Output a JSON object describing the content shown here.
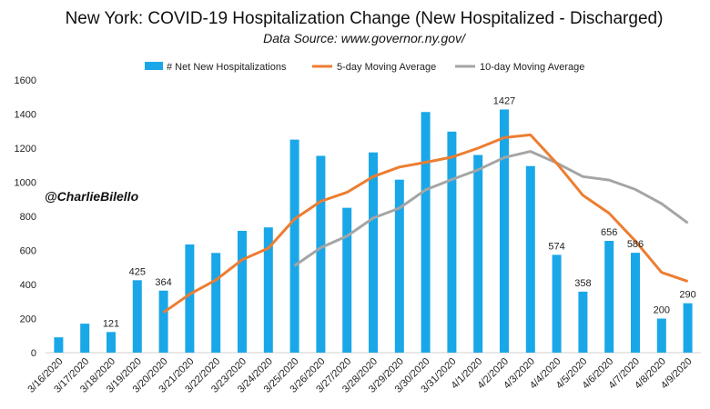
{
  "chart_data": {
    "type": "bar",
    "title": "New York: COVID-19 Hospitalization Change (New Hospitalized - Discharged)",
    "subtitle": "Data Source: www.governor.ny.gov/",
    "annotation": "@CharlieBilello",
    "ylim": [
      0,
      1600
    ],
    "yticks": [
      0,
      200,
      400,
      600,
      800,
      1000,
      1200,
      1400,
      1600
    ],
    "grid": false,
    "legend_position": "top",
    "categories": [
      "3/16/2020",
      "3/17/2020",
      "3/18/2020",
      "3/19/2020",
      "3/20/2020",
      "3/21/2020",
      "3/22/2020",
      "3/23/2020",
      "3/24/2020",
      "3/25/2020",
      "3/26/2020",
      "3/27/2020",
      "3/28/2020",
      "3/29/2020",
      "3/30/2020",
      "3/31/2020",
      "4/1/2020",
      "4/2/2020",
      "4/3/2020",
      "4/4/2020",
      "4/5/2020",
      "4/6/2020",
      "4/7/2020",
      "4/8/2020",
      "4/9/2020"
    ],
    "series": [
      {
        "name": "# Net New Hospitalizations",
        "kind": "bar",
        "color": "#1aa7e8",
        "values": [
          90,
          170,
          121,
          425,
          364,
          635,
          585,
          715,
          735,
          1250,
          1155,
          850,
          1175,
          1015,
          1412,
          1297,
          1160,
          1427,
          1095,
          574,
          358,
          656,
          586,
          200,
          290
        ]
      },
      {
        "name": "5-day Moving Average",
        "kind": "line",
        "color": "#ed7d31",
        "values": [
          null,
          null,
          null,
          null,
          236,
          343,
          426,
          545,
          613,
          784,
          888,
          941,
          1033,
          1089,
          1117,
          1147,
          1200,
          1262,
          1278,
          1111,
          923,
          818,
          655,
          471,
          418
        ]
      },
      {
        "name": "10-day Moving Average",
        "kind": "line",
        "color": "#a5a5a5",
        "values": [
          null,
          null,
          null,
          null,
          null,
          null,
          null,
          null,
          null,
          510,
          616,
          684,
          790,
          848,
          955,
          1016,
          1073,
          1145,
          1181,
          1113,
          1033,
          1013,
          958,
          874,
          761
        ]
      }
    ],
    "data_labels": [
      {
        "index": 2,
        "text": "121"
      },
      {
        "index": 3,
        "text": "425"
      },
      {
        "index": 4,
        "text": "364"
      },
      {
        "index": 17,
        "text": "1427"
      },
      {
        "index": 19,
        "text": "574"
      },
      {
        "index": 20,
        "text": "358"
      },
      {
        "index": 21,
        "text": "656"
      },
      {
        "index": 22,
        "text": "586"
      },
      {
        "index": 23,
        "text": "200"
      },
      {
        "index": 24,
        "text": "290"
      }
    ]
  }
}
